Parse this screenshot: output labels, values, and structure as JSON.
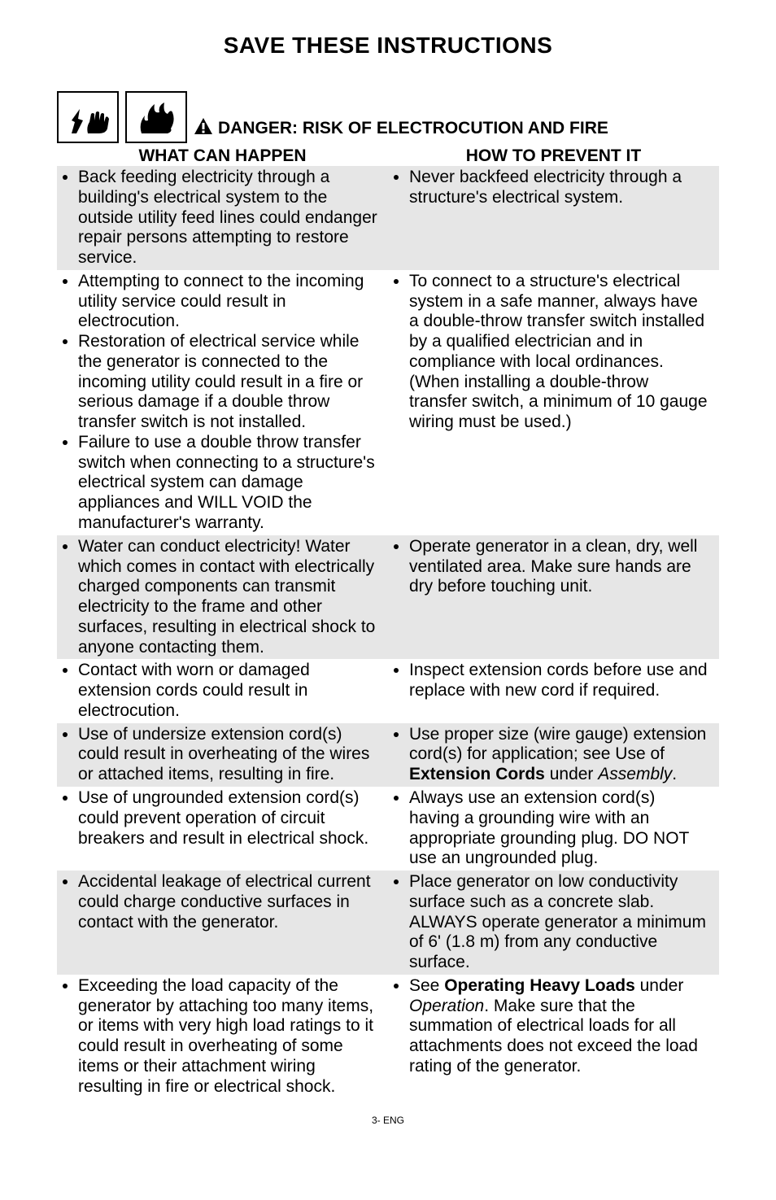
{
  "title": "SAVE THESE INSTRUCTIONS",
  "danger_label": "DANGER",
  "danger_suffix": ": RISK OF ELECTROCUTION AND FIRE",
  "header_left": "WHAT CAN HAPPEN",
  "header_right": "HOW TO PREVENT IT",
  "rows": [
    {
      "shaded": true,
      "left": [
        "Back feeding electricity through a building's electrical system to the outside utility feed lines could endanger repair persons attempting to restore service."
      ],
      "right": [
        "Never backfeed electricity through a structure's electrical system."
      ]
    },
    {
      "shaded": false,
      "left": [
        "Attempting to connect to the incoming utility service could result in electrocution.",
        "Restoration of electrical service while the generator is connected to the incoming utility could result in a fire or serious damage if a double throw transfer switch is not installed.",
        "Failure to use a double throw transfer switch when connecting to a structure's electrical system can damage appliances and WILL VOID the manufacturer's warranty."
      ],
      "right": [
        "To connect to a structure's electrical system in a safe manner, always have a double-throw transfer switch installed by a qualified electrician and in compliance with local ordinances. (When installing a double-throw transfer switch, a minimum of 10 gauge wiring must be used.)"
      ]
    },
    {
      "shaded": true,
      "left": [
        "Water can conduct electricity! Water which comes in contact with electrically charged components can transmit electricity to the frame and other surfaces, resulting in electrical shock to anyone contacting them."
      ],
      "right": [
        "Operate generator in a clean, dry, well ventilated area. Make sure hands are dry before touching unit."
      ]
    },
    {
      "shaded": false,
      "left": [
        "Contact with worn or damaged extension cords could result in electrocution."
      ],
      "right": [
        "Inspect extension cords before use and replace with new cord if required."
      ]
    },
    {
      "shaded": true,
      "left": [
        "Use of undersize extension cord(s) could result in overheating of the wires or attached items, resulting in fire."
      ],
      "right_html": "Use proper size (wire gauge) extension cord(s) for application; see Use of <span class=\"bold\">Extension Cords</span> under <span class=\"italic\">Assembly</span>."
    },
    {
      "shaded": false,
      "left": [
        "Use of ungrounded extension cord(s) could prevent operation of circuit breakers and result in electrical shock."
      ],
      "right": [
        "Always use an extension cord(s) having a grounding wire with an appropriate grounding plug. DO NOT use an ungrounded plug."
      ]
    },
    {
      "shaded": true,
      "left": [
        "Accidental leakage of electrical current could charge conductive surfaces in contact with the generator."
      ],
      "right": [
        "Place generator on low conductivity surface such as a concrete slab. ALWAYS operate generator a minimum of 6' (1.8 m) from any conductive surface."
      ]
    },
    {
      "shaded": false,
      "left": [
        "Exceeding the load capacity of the generator by attaching too many items, or items with very high load ratings to it could result in overheating of some items or their attachment wiring resulting in fire or electrical shock."
      ],
      "right_html": "See <span class=\"bold\">Operating Heavy Loads</span> under <span class=\"italic\">Operation</span>. Make sure that the summation of electrical loads for all attachments does not exceed the load rating of the generator."
    }
  ],
  "footer": "3- ENG"
}
